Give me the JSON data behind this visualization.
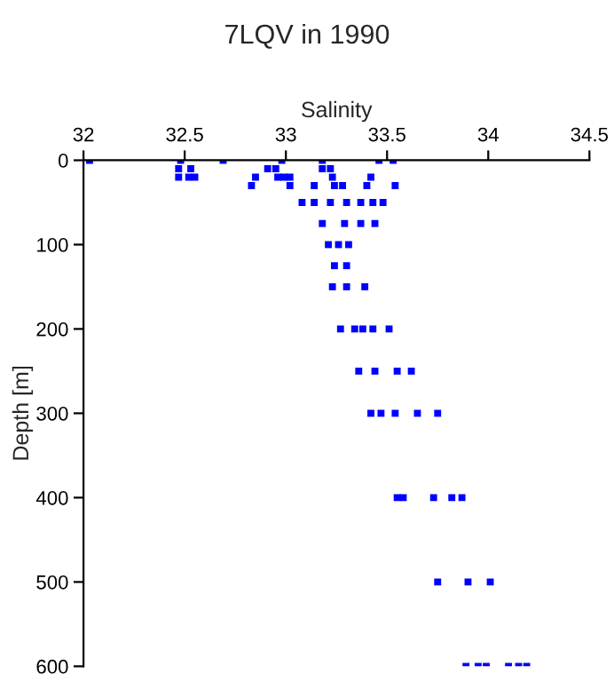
{
  "chart_data": {
    "type": "scatter",
    "title": "7LQV in 1990",
    "xlabel": "Salinity",
    "ylabel": "Depth [m]",
    "xlim": [
      32,
      34.5
    ],
    "xticks": [
      32,
      32.5,
      33,
      33.5,
      34,
      34.5
    ],
    "ylim": [
      600,
      0
    ],
    "yticks": [
      0,
      100,
      200,
      300,
      400,
      500,
      600
    ],
    "grid": false,
    "legend": false,
    "marker": "square",
    "series": [
      {
        "color": "#0000ff",
        "x": [
          32.03,
          32.48,
          32.69,
          32.98,
          33.18,
          33.46,
          33.53,
          32.47,
          32.53,
          32.91,
          32.95,
          33.18,
          33.22,
          32.47,
          32.52,
          32.55,
          32.85,
          32.96,
          32.99,
          33.02,
          33.23,
          33.42,
          32.83,
          33.02,
          33.14,
          33.24,
          33.28,
          33.4,
          33.54,
          33.08,
          33.14,
          33.22,
          33.3,
          33.37,
          33.43,
          33.48,
          33.18,
          33.29,
          33.37,
          33.44,
          33.21,
          33.26,
          33.31,
          33.24,
          33.3,
          33.23,
          33.3,
          33.39,
          33.27,
          33.34,
          33.38,
          33.43,
          33.51,
          33.36,
          33.44,
          33.55,
          33.62,
          33.42,
          33.47,
          33.54,
          33.65,
          33.75,
          33.55,
          33.58,
          33.73,
          33.82,
          33.87,
          33.75,
          33.9,
          34.01,
          33.89,
          33.95,
          33.99,
          34.1,
          34.15,
          34.19
        ],
        "values": [
          0,
          0,
          0,
          0,
          0,
          0,
          0,
          10,
          10,
          10,
          10,
          10,
          10,
          20,
          20,
          20,
          20,
          20,
          20,
          20,
          20,
          20,
          30,
          30,
          30,
          30,
          30,
          30,
          30,
          50,
          50,
          50,
          50,
          50,
          50,
          50,
          75,
          75,
          75,
          75,
          100,
          100,
          100,
          125,
          125,
          150,
          150,
          150,
          200,
          200,
          200,
          200,
          200,
          250,
          250,
          250,
          250,
          300,
          300,
          300,
          300,
          300,
          400,
          400,
          400,
          400,
          400,
          500,
          500,
          500,
          600,
          600,
          600,
          600,
          600,
          600
        ]
      }
    ]
  }
}
